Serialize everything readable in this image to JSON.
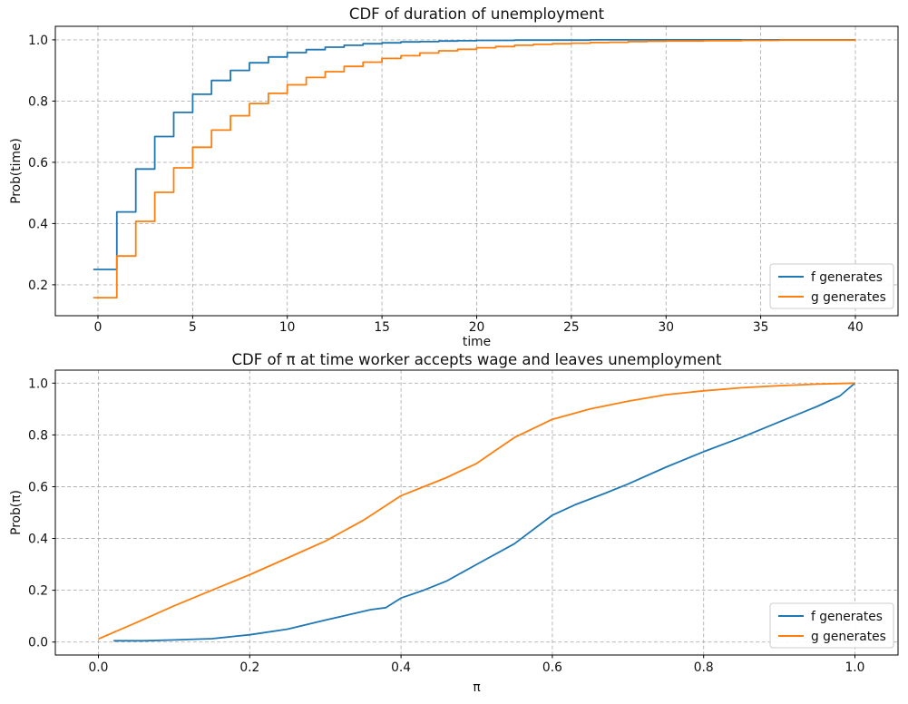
{
  "figure": {
    "background": "#ffffff"
  },
  "colors": {
    "f_series": "#1f77b4",
    "g_series": "#ff7f0e",
    "grid": "#b0b0b0",
    "spine": "#000000",
    "text": "#111111",
    "legend_border": "#cccccc",
    "legend_background": "#ffffff"
  },
  "chart_data": [
    {
      "type": "line",
      "subtype": "step-post",
      "title": "CDF of duration of unemployment",
      "xlabel": "time",
      "ylabel": "Prob(time)",
      "xlim": [
        -2.25,
        42.25
      ],
      "ylim": [
        0.099,
        1.044
      ],
      "xticks": [
        0,
        5,
        10,
        15,
        20,
        25,
        30,
        35,
        40
      ],
      "xticklabels": [
        "0",
        "5",
        "10",
        "15",
        "20",
        "25",
        "30",
        "35",
        "40"
      ],
      "yticks": [
        0.2,
        0.4,
        0.6,
        0.8,
        1.0
      ],
      "yticklabels": [
        "0.2",
        "0.4",
        "0.6",
        "0.8",
        "1.0"
      ],
      "grid": true,
      "legend_position": "lower right",
      "series": [
        {
          "name": "f generates",
          "color_key": "f_series",
          "x": [
            0,
            1,
            2,
            3,
            4,
            5,
            6,
            7,
            8,
            9,
            10,
            11,
            12,
            13,
            14,
            15,
            16,
            17,
            18,
            19,
            20,
            21,
            22,
            23,
            24,
            25,
            26,
            27,
            28,
            29,
            30,
            31,
            32,
            33,
            34,
            35,
            36,
            37,
            38,
            39,
            40
          ],
          "y": [
            0.25,
            0.438,
            0.578,
            0.684,
            0.763,
            0.822,
            0.867,
            0.9,
            0.925,
            0.944,
            0.958,
            0.968,
            0.976,
            0.982,
            0.987,
            0.99,
            0.993,
            0.994,
            0.996,
            0.997,
            0.998,
            0.998,
            0.999,
            0.999,
            0.999,
            0.999,
            1.0,
            1.0,
            1.0,
            1.0,
            1.0,
            1.0,
            1.0,
            1.0,
            1.0,
            1.0,
            1.0,
            1.0,
            1.0,
            1.0,
            1.0
          ]
        },
        {
          "name": "g generates",
          "color_key": "g_series",
          "x": [
            0,
            1,
            2,
            3,
            4,
            5,
            6,
            7,
            8,
            9,
            10,
            11,
            12,
            13,
            14,
            15,
            16,
            17,
            18,
            19,
            20,
            21,
            22,
            23,
            24,
            25,
            26,
            27,
            28,
            29,
            30,
            31,
            32,
            33,
            34,
            35,
            36,
            37,
            38,
            39,
            40
          ],
          "y": [
            0.158,
            0.294,
            0.407,
            0.502,
            0.582,
            0.649,
            0.705,
            0.752,
            0.792,
            0.825,
            0.853,
            0.877,
            0.896,
            0.913,
            0.927,
            0.939,
            0.948,
            0.957,
            0.964,
            0.969,
            0.974,
            0.978,
            0.982,
            0.985,
            0.987,
            0.989,
            0.991,
            0.992,
            0.994,
            0.995,
            0.996,
            0.996,
            0.997,
            0.997,
            0.998,
            0.998,
            0.999,
            0.999,
            0.999,
            0.999,
            1.0
          ]
        }
      ]
    },
    {
      "type": "line",
      "subtype": "line",
      "title": "CDF of π at time worker accepts wage and leaves unemployment",
      "xlabel": "π",
      "ylabel": "Prob(π)",
      "xlim": [
        -0.057,
        1.057
      ],
      "ylim": [
        -0.05,
        1.05
      ],
      "xticks": [
        0.0,
        0.2,
        0.4,
        0.6,
        0.8,
        1.0
      ],
      "xticklabels": [
        "0.0",
        "0.2",
        "0.4",
        "0.6",
        "0.8",
        "1.0"
      ],
      "yticks": [
        0.0,
        0.2,
        0.4,
        0.6,
        0.8,
        1.0
      ],
      "yticklabels": [
        "0.0",
        "0.2",
        "0.4",
        "0.6",
        "0.8",
        "1.0"
      ],
      "grid": true,
      "legend_position": "lower right",
      "series": [
        {
          "name": "f generates",
          "color_key": "f_series",
          "x": [
            0.02,
            0.06,
            0.1,
            0.15,
            0.2,
            0.25,
            0.3,
            0.33,
            0.36,
            0.38,
            0.4,
            0.43,
            0.46,
            0.5,
            0.55,
            0.6,
            0.63,
            0.67,
            0.7,
            0.75,
            0.8,
            0.85,
            0.9,
            0.95,
            0.98,
            1.0
          ],
          "y": [
            0.005,
            0.005,
            0.008,
            0.013,
            0.028,
            0.05,
            0.085,
            0.105,
            0.125,
            0.133,
            0.17,
            0.2,
            0.235,
            0.3,
            0.38,
            0.49,
            0.53,
            0.575,
            0.61,
            0.675,
            0.735,
            0.79,
            0.85,
            0.91,
            0.95,
            1.0
          ]
        },
        {
          "name": "g generates",
          "color_key": "g_series",
          "x": [
            0.0,
            0.05,
            0.1,
            0.15,
            0.2,
            0.25,
            0.3,
            0.35,
            0.4,
            0.43,
            0.46,
            0.5,
            0.52,
            0.55,
            0.6,
            0.65,
            0.7,
            0.75,
            0.8,
            0.85,
            0.9,
            0.95,
            1.0
          ],
          "y": [
            0.012,
            0.075,
            0.14,
            0.2,
            0.26,
            0.325,
            0.39,
            0.47,
            0.565,
            0.6,
            0.635,
            0.69,
            0.73,
            0.79,
            0.86,
            0.9,
            0.93,
            0.955,
            0.97,
            0.982,
            0.99,
            0.996,
            1.0
          ]
        }
      ]
    }
  ]
}
